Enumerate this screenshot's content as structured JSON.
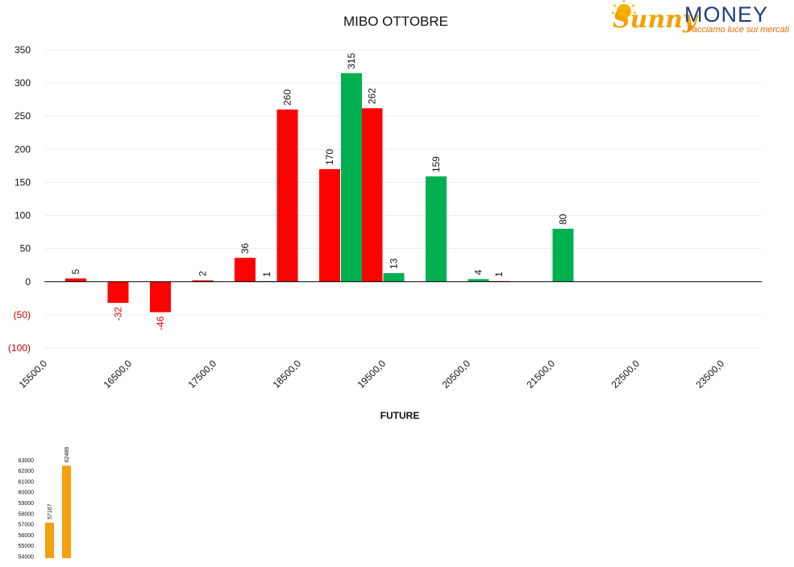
{
  "logo": {
    "brand_first": "Sunny",
    "brand_second": "MONEY",
    "tagline": "Facciamo luce sui mercati",
    "icon": "sun-icon",
    "colors": {
      "sunny": "#f5a000",
      "money": "#1f3f78",
      "tagline": "#e26a00"
    }
  },
  "chart_data": [
    {
      "type": "bar",
      "title": "MIBO OTTOBRE",
      "xlabel": "",
      "ylabel": "",
      "x_ticks": [
        "15500,0",
        "16500,0",
        "17500,0",
        "18500,0",
        "19500,0",
        "20500,0",
        "21500,0",
        "22500,0",
        "23500,0"
      ],
      "x_tick_values": [
        15500,
        16500,
        17500,
        18500,
        19500,
        20500,
        21500,
        22500,
        23500
      ],
      "xlim": [
        15500,
        24000
      ],
      "y_ticks": [
        "350",
        "300",
        "250",
        "200",
        "150",
        "100",
        "50",
        "0",
        "(50)",
        "(100)"
      ],
      "y_tick_values": [
        350,
        300,
        250,
        200,
        150,
        100,
        50,
        0,
        -50,
        -100
      ],
      "ylim": [
        -100,
        350
      ],
      "grid": true,
      "series": [
        {
          "color": "#ff0000",
          "points": [
            {
              "x": 16000,
              "y": 5,
              "label": "5"
            },
            {
              "x": 16500,
              "y": -32,
              "label": "-32"
            },
            {
              "x": 17000,
              "y": -46,
              "label": "-46"
            },
            {
              "x": 17500,
              "y": 2,
              "label": "2"
            },
            {
              "x": 18000,
              "y": 36,
              "label": "36"
            },
            {
              "x": 18500,
              "y": 260,
              "label": "260"
            },
            {
              "x": 19000,
              "y": 170,
              "label": "170"
            },
            {
              "x": 19500,
              "y": 262,
              "label": "262"
            },
            {
              "x": 21000,
              "y": 1,
              "label": "1"
            }
          ]
        },
        {
          "color": "#00b050",
          "points": [
            {
              "x": 18000,
              "y": 1,
              "label": "1"
            },
            {
              "x": 19000,
              "y": 315,
              "label": "315"
            },
            {
              "x": 19500,
              "y": 13,
              "label": "13"
            },
            {
              "x": 20000,
              "y": 159,
              "label": "159"
            },
            {
              "x": 20500,
              "y": 4,
              "label": "4"
            },
            {
              "x": 21500,
              "y": 80,
              "label": "80"
            }
          ]
        }
      ]
    },
    {
      "type": "bar",
      "title": "FUTURE",
      "y_ticks": [
        "63000",
        "62000",
        "61000",
        "60000",
        "59000",
        "58000",
        "57000",
        "56000",
        "55000",
        "54000"
      ],
      "y_tick_values": [
        63000,
        62000,
        61000,
        60000,
        59000,
        58000,
        57000,
        56000,
        55000,
        54000
      ],
      "ylim": [
        54000,
        64000
      ],
      "grid": false,
      "color": "#f5a010",
      "values": [
        57167,
        62486
      ],
      "labels": [
        "57167",
        "62486"
      ]
    }
  ]
}
